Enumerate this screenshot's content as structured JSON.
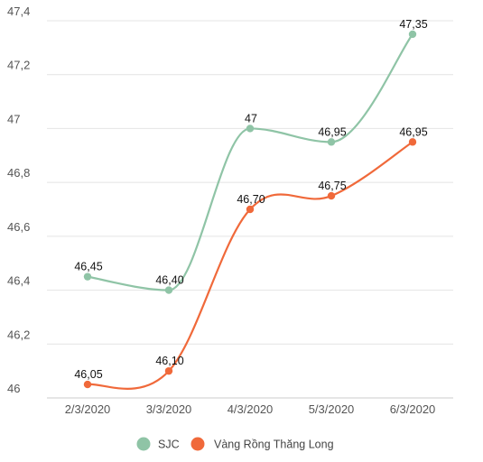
{
  "chart_data": {
    "type": "line",
    "categories": [
      "2/3/2020",
      "3/3/2020",
      "4/3/2020",
      "5/3/2020",
      "6/3/2020"
    ],
    "ylim": [
      46,
      47.4
    ],
    "yticks": [
      46,
      46.2,
      46.4,
      46.6,
      46.8,
      47,
      47.2,
      47.4
    ],
    "ytick_labels": [
      "46",
      "46,2",
      "46,4",
      "46,6",
      "46,8",
      "47",
      "47,2",
      "47,4"
    ],
    "grid": true,
    "legend_position": "bottom",
    "series": [
      {
        "name": "SJC",
        "color": "#8fc4a6",
        "values": [
          46.45,
          46.4,
          47,
          46.95,
          47.35
        ],
        "labels": [
          "46,45",
          "46,40",
          "47",
          "46,95",
          "47,35"
        ]
      },
      {
        "name": "Vàng Rồng Thăng Long",
        "color": "#f0693a",
        "values": [
          46.05,
          46.1,
          46.7,
          46.75,
          46.95
        ],
        "labels": [
          "46,05",
          "46,10",
          "46,70",
          "46,75",
          "46,95"
        ]
      }
    ]
  }
}
